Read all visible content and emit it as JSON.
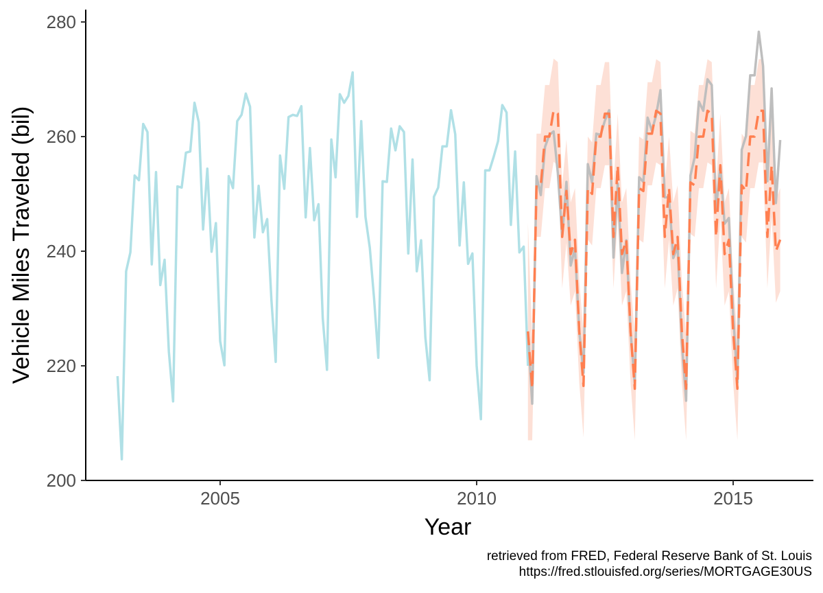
{
  "chart_data": {
    "type": "line",
    "xlabel": "Year",
    "ylabel": "Vehicle Miles Traveled (bil)",
    "xlim": [
      2002.55,
      2016.3
    ],
    "ylim": [
      200,
      282
    ],
    "x_ticks": [
      2005,
      2010,
      2015
    ],
    "y_ticks": [
      200,
      220,
      240,
      260,
      280
    ],
    "grid": false,
    "legend": "none",
    "colors": {
      "observed": "#b0e0e6",
      "actual": "#bebebe",
      "forecast": "#ff7f50",
      "interval": "#fde0d6"
    },
    "series": [
      {
        "key": "observed",
        "x_start": 2003.0,
        "values": [
          218.2,
          203.7,
          236.5,
          239.8,
          253.2,
          252.4,
          262.2,
          260.8,
          237.7,
          253.8,
          234.1,
          238.5,
          222.5,
          213.8,
          251.3,
          251.1,
          257.2,
          257.4,
          265.9,
          262.5,
          243.8,
          254.4,
          239.9,
          244.9,
          224.3,
          220.1,
          253.1,
          251.0,
          262.7,
          263.8,
          267.5,
          265.2,
          242.4,
          251.4,
          243.3,
          245.6,
          231.4,
          220.7,
          256.7,
          250.9,
          263.4,
          263.8,
          263.6,
          265.3,
          245.9,
          258.0,
          245.4,
          248.2,
          228.3,
          219.3,
          259.5,
          252.9,
          267.4,
          265.9,
          267.1,
          271.2,
          246.0,
          262.7,
          246.0,
          240.6,
          231.8,
          221.4,
          252.2,
          252.1,
          261.4,
          257.6,
          261.8,
          260.8,
          239.6,
          256.0,
          236.5,
          241.9,
          225.0,
          217.5,
          249.5,
          251.1,
          258.3,
          258.3,
          264.6,
          260.4,
          241.0,
          252.0,
          237.8,
          239.6,
          220.0,
          210.7,
          254.1,
          254.1,
          256.5,
          259.2,
          265.5,
          264.2,
          244.6,
          257.4,
          239.8,
          240.8,
          220.0
        ]
      },
      {
        "key": "actual",
        "x_start": 2011.0,
        "values": [
          226.0,
          213.4,
          253.1,
          249.8,
          258.2,
          260.3,
          260.9,
          253.6,
          242.6,
          252.1,
          237.5,
          240.5,
          226.0,
          218.8,
          255.2,
          252.0,
          260.5,
          260.3,
          262.8,
          264.6,
          238.9,
          251.8,
          236.2,
          241.9,
          226.0,
          216.8,
          252.9,
          252.1,
          263.3,
          261.0,
          263.8,
          268.1,
          249.4,
          249.4,
          238.8,
          240.8,
          224.0,
          213.9,
          253.2,
          256.4,
          266.1,
          264.5,
          270.0,
          269.0,
          247.3,
          254.9,
          244.8,
          245.8,
          229.0,
          217.1,
          257.7,
          260.1,
          270.7,
          270.7,
          278.3,
          272.3,
          252.2,
          268.4,
          248.4,
          259.4
        ]
      },
      {
        "key": "forecast",
        "x_start": 2011.0,
        "values": [
          226.0,
          216.0,
          251.5,
          251.5,
          260.0,
          260.0,
          264.6,
          264.0,
          242.5,
          250.5,
          239.5,
          242.0,
          226.0,
          216.5,
          251.0,
          250.0,
          260.0,
          260.0,
          264.0,
          264.0,
          242.5,
          255.0,
          239.5,
          242.0,
          226.0,
          216.0,
          251.0,
          250.5,
          260.5,
          260.5,
          264.5,
          264.0,
          242.5,
          251.0,
          239.5,
          242.5,
          226.0,
          216.0,
          252.0,
          251.5,
          260.0,
          260.0,
          264.5,
          264.0,
          242.5,
          255.0,
          239.5,
          242.0,
          226.0,
          216.0,
          251.5,
          250.5,
          260.0,
          260.0,
          264.5,
          264.5,
          242.5,
          255.0,
          240.0,
          242.0
        ]
      }
    ],
    "interval_halfwidth": [
      19.0,
      9.0,
      9.0,
      9.0,
      9.0,
      9.0,
      9.0,
      9.0,
      9.0,
      9.0,
      9.0,
      9.0,
      9.0,
      9.0,
      9.0,
      9.0,
      9.0,
      9.0,
      9.0,
      9.0,
      9.0,
      9.0,
      9.0,
      9.0,
      9.0,
      9.0,
      9.0,
      9.0,
      9.0,
      9.0,
      9.0,
      9.0,
      9.0,
      9.0,
      9.0,
      9.0,
      9.0,
      9.0,
      9.0,
      9.0,
      9.0,
      9.0,
      9.0,
      9.0,
      9.0,
      9.0,
      9.0,
      9.0,
      9.0,
      9.0,
      9.0,
      9.0,
      9.0,
      9.0,
      9.0,
      9.0,
      9.0,
      9.0,
      9.0,
      9.0
    ]
  },
  "caption": {
    "line1": "retrieved from FRED, Federal Reserve Bank of St. Louis",
    "line2": "https://fred.stlouisfed.org/series/MORTGAGE30US"
  }
}
